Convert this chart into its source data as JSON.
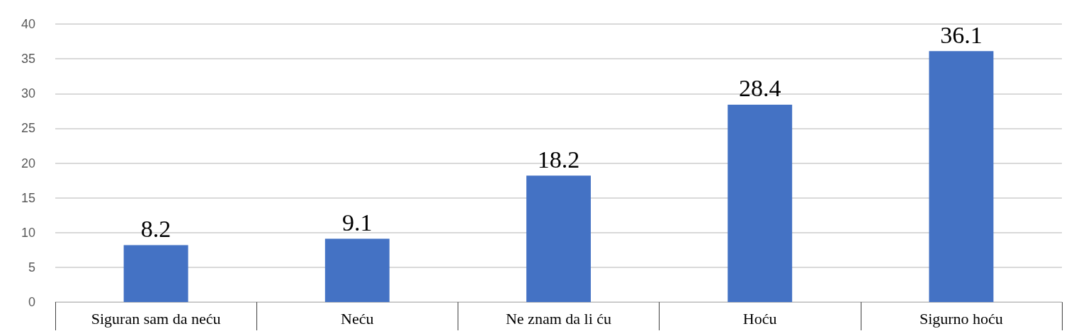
{
  "chart_data": {
    "type": "bar",
    "categories": [
      "Siguran sam da neću",
      "Neću",
      "Ne znam da li ću",
      "Hoću",
      "Sigurno hoću"
    ],
    "values": [
      8.2,
      9.1,
      18.2,
      28.4,
      36.1
    ],
    "color": "#4472c4",
    "ylim": [
      0,
      40
    ],
    "yticks": [
      0,
      5,
      10,
      15,
      20,
      25,
      30,
      35,
      40
    ],
    "grid": "y",
    "data_labels": true
  }
}
